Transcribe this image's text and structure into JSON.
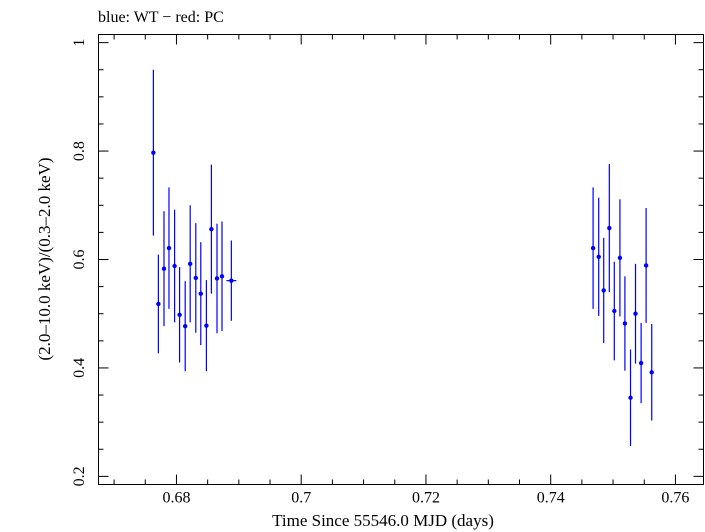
{
  "chart_data": {
    "type": "scatter",
    "title": "blue: WT − red: PC",
    "xlabel": "Time Since 55546.0 MJD (days)",
    "ylabel": "(2.0–10.0 keV)/(0.3–2.0 keV)",
    "xlim": [
      0.6675,
      0.7645
    ],
    "ylim": [
      0.185,
      1.015
    ],
    "xticks": [
      0.68,
      0.7,
      0.72,
      0.74,
      0.76
    ],
    "xtick_labels": [
      "0.68",
      "0.7",
      "0.72",
      "0.74",
      "0.76"
    ],
    "yticks": [
      0.2,
      0.4,
      0.6,
      0.8,
      1.0
    ],
    "ytick_labels": [
      "0.2",
      "0.4",
      "0.6",
      "0.8",
      "1"
    ],
    "grid": false,
    "series": [
      {
        "color": "#0000ff",
        "points": [
          {
            "x": 0.6763,
            "y": 0.797,
            "yerr": 0.153,
            "xerr": 0.0003
          },
          {
            "x": 0.6771,
            "y": 0.518,
            "yerr": 0.091,
            "xerr": 0.0003
          },
          {
            "x": 0.678,
            "y": 0.583,
            "yerr": 0.106,
            "xerr": 0.0003
          },
          {
            "x": 0.6788,
            "y": 0.621,
            "yerr": 0.112,
            "xerr": 0.0003
          },
          {
            "x": 0.6797,
            "y": 0.588,
            "yerr": 0.104,
            "xerr": 0.0003
          },
          {
            "x": 0.6805,
            "y": 0.498,
            "yerr": 0.088,
            "xerr": 0.0003
          },
          {
            "x": 0.6814,
            "y": 0.477,
            "yerr": 0.083,
            "xerr": 0.0003
          },
          {
            "x": 0.6822,
            "y": 0.592,
            "yerr": 0.108,
            "xerr": 0.0003
          },
          {
            "x": 0.6831,
            "y": 0.566,
            "yerr": 0.101,
            "xerr": 0.0003
          },
          {
            "x": 0.6839,
            "y": 0.537,
            "yerr": 0.095,
            "xerr": 0.0003
          },
          {
            "x": 0.6848,
            "y": 0.478,
            "yerr": 0.084,
            "xerr": 0.0003
          },
          {
            "x": 0.6856,
            "y": 0.656,
            "yerr": 0.119,
            "xerr": 0.0003
          },
          {
            "x": 0.6865,
            "y": 0.565,
            "yerr": 0.101,
            "xerr": 0.0003
          },
          {
            "x": 0.6873,
            "y": 0.569,
            "yerr": 0.101,
            "xerr": 0.0003
          },
          {
            "x": 0.6888,
            "y": 0.561,
            "yerr": 0.074,
            "xerr": 0.0008
          },
          {
            "x": 0.7468,
            "y": 0.621,
            "yerr": 0.112,
            "xerr": 0.0003
          },
          {
            "x": 0.7477,
            "y": 0.605,
            "yerr": 0.109,
            "xerr": 0.0003
          },
          {
            "x": 0.7485,
            "y": 0.543,
            "yerr": 0.097,
            "xerr": 0.0003
          },
          {
            "x": 0.7494,
            "y": 0.658,
            "yerr": 0.118,
            "xerr": 0.0003
          },
          {
            "x": 0.7502,
            "y": 0.505,
            "yerr": 0.091,
            "xerr": 0.0003
          },
          {
            "x": 0.7511,
            "y": 0.603,
            "yerr": 0.108,
            "xerr": 0.0003
          },
          {
            "x": 0.7519,
            "y": 0.482,
            "yerr": 0.087,
            "xerr": 0.0003
          },
          {
            "x": 0.7528,
            "y": 0.345,
            "yerr": 0.089,
            "xerr": 0.0003
          },
          {
            "x": 0.7536,
            "y": 0.5,
            "yerr": 0.092,
            "xerr": 0.0003
          },
          {
            "x": 0.7545,
            "y": 0.409,
            "yerr": 0.074,
            "xerr": 0.0003
          },
          {
            "x": 0.7553,
            "y": 0.589,
            "yerr": 0.106,
            "xerr": 0.0003
          },
          {
            "x": 0.7562,
            "y": 0.392,
            "yerr": 0.089,
            "xerr": 0.0003
          }
        ]
      }
    ]
  }
}
